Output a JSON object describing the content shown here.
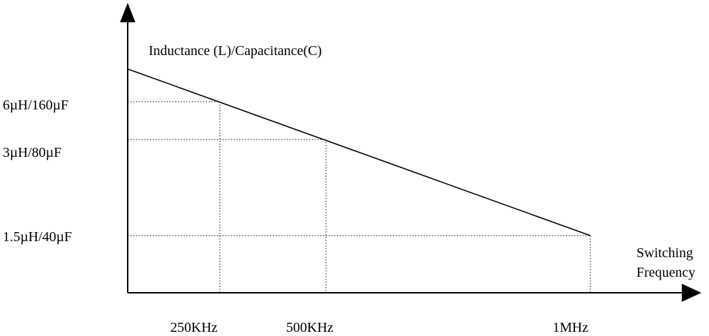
{
  "chart_data": {
    "type": "line",
    "ylabel": "Inductance (L)/Capacitance(C)",
    "xlabel_lines": [
      "Switching",
      "Frequency"
    ],
    "x_ticks": [
      "250KHz",
      "500KHz",
      "1MHz"
    ],
    "y_ticks": [
      "6µH/160µF",
      "3µH/80µF",
      "1.5µH/40µF"
    ],
    "points": [
      {
        "x": "250KHz",
        "y": "6µH/160µF"
      },
      {
        "x": "500KHz",
        "y": "3µH/80µF"
      },
      {
        "x": "1MHz",
        "y": "1.5µH/40µF"
      }
    ],
    "grid": "dotted guide lines from each point to both axes"
  },
  "colors": {
    "line": "#000000",
    "background": "#ffffff"
  }
}
